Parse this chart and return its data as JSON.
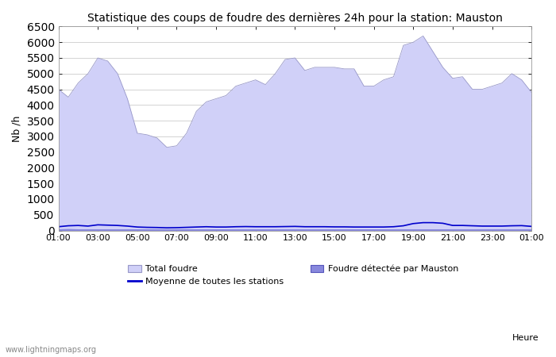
{
  "title": "Statistique des coups de foudre des dernières 24h pour la station: Mauston",
  "ylabel": "Nb /h",
  "xlabel": "Heure",
  "ylim": [
    0,
    6500
  ],
  "yticks": [
    0,
    500,
    1000,
    1500,
    2000,
    2500,
    3000,
    3500,
    4000,
    4500,
    5000,
    5500,
    6000,
    6500
  ],
  "xtick_labels": [
    "01:00",
    "03:00",
    "05:00",
    "07:00",
    "09:00",
    "11:00",
    "13:00",
    "15:00",
    "17:00",
    "19:00",
    "21:00",
    "23:00",
    "01:00"
  ],
  "bg_color": "#ffffff",
  "plot_bg_color": "#ffffff",
  "grid_color": "#cccccc",
  "watermark": "www.lightningmaps.org",
  "total_foudre_color": "#d0d0f8",
  "total_foudre_edge_color": "#9898c8",
  "mauston_color": "#8888dd",
  "mauston_edge_color": "#5555bb",
  "mean_color": "#0000cc",
  "x_hours": [
    1,
    1.5,
    2,
    2.5,
    3,
    3.5,
    4,
    4.5,
    5,
    5.5,
    6,
    6.5,
    7,
    7.5,
    8,
    8.5,
    9,
    9.5,
    10,
    10.5,
    11,
    11.5,
    12,
    12.5,
    13,
    13.5,
    14,
    14.5,
    15,
    15.5,
    16,
    16.5,
    17,
    17.5,
    18,
    18.5,
    19,
    19.5,
    20,
    20.5,
    21,
    21.5,
    22,
    22.5,
    23,
    23.5,
    24,
    24.5,
    25
  ],
  "total_foudre": [
    4500,
    4250,
    4700,
    5000,
    5500,
    5400,
    5000,
    4200,
    3100,
    3050,
    2950,
    2650,
    2700,
    3100,
    3800,
    4100,
    4200,
    4300,
    4600,
    4700,
    4800,
    4650,
    5000,
    5450,
    5500,
    5100,
    5200,
    5200,
    5200,
    5150,
    5150,
    4600,
    4600,
    4800,
    4900,
    5900,
    6000,
    6200,
    5700,
    5200,
    4850,
    4900,
    4500,
    4500,
    4600,
    4700,
    5000,
    4800,
    4400
  ],
  "mauston": [
    50,
    60,
    50,
    50,
    50,
    50,
    50,
    50,
    50,
    50,
    50,
    50,
    50,
    50,
    50,
    50,
    50,
    50,
    50,
    50,
    50,
    50,
    50,
    50,
    50,
    50,
    50,
    50,
    50,
    50,
    50,
    50,
    50,
    50,
    50,
    50,
    50,
    50,
    50,
    50,
    50,
    50,
    50,
    50,
    50,
    50,
    50,
    50,
    50
  ],
  "mean_line": [
    120,
    150,
    160,
    140,
    180,
    170,
    160,
    140,
    110,
    100,
    95,
    85,
    90,
    100,
    110,
    120,
    110,
    110,
    120,
    125,
    120,
    120,
    120,
    125,
    130,
    120,
    120,
    120,
    115,
    115,
    110,
    110,
    110,
    110,
    120,
    150,
    220,
    250,
    250,
    230,
    160,
    160,
    150,
    140,
    140,
    140,
    150,
    155,
    130
  ]
}
